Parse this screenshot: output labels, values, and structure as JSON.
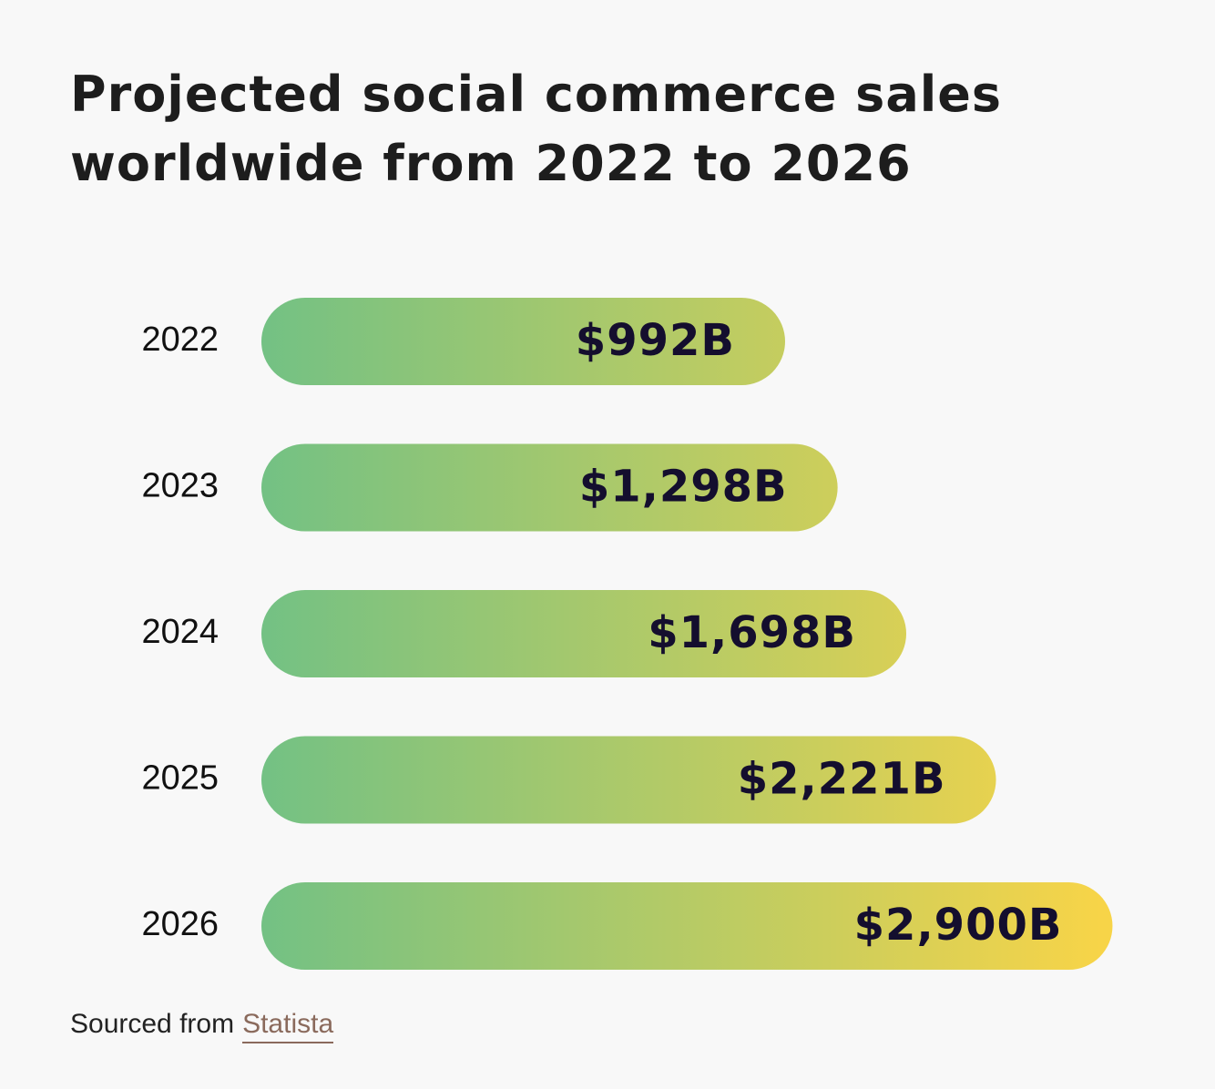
{
  "chart_data": {
    "type": "bar",
    "orientation": "horizontal",
    "title": "Projected social commerce sales worldwide from 2022 to 2026",
    "categories": [
      "2022",
      "2023",
      "2024",
      "2025",
      "2026"
    ],
    "values": [
      992,
      1298,
      1698,
      2221,
      2900
    ],
    "value_labels": [
      "$992B",
      "$1,298B",
      "$1,698B",
      "$2,221B",
      "$2,900B"
    ],
    "gradient": [
      "#73c184",
      "#f7d448"
    ],
    "xlim": [
      -2060,
      2940
    ],
    "source_prefix": "Sourced from",
    "source_link": "Statista"
  }
}
